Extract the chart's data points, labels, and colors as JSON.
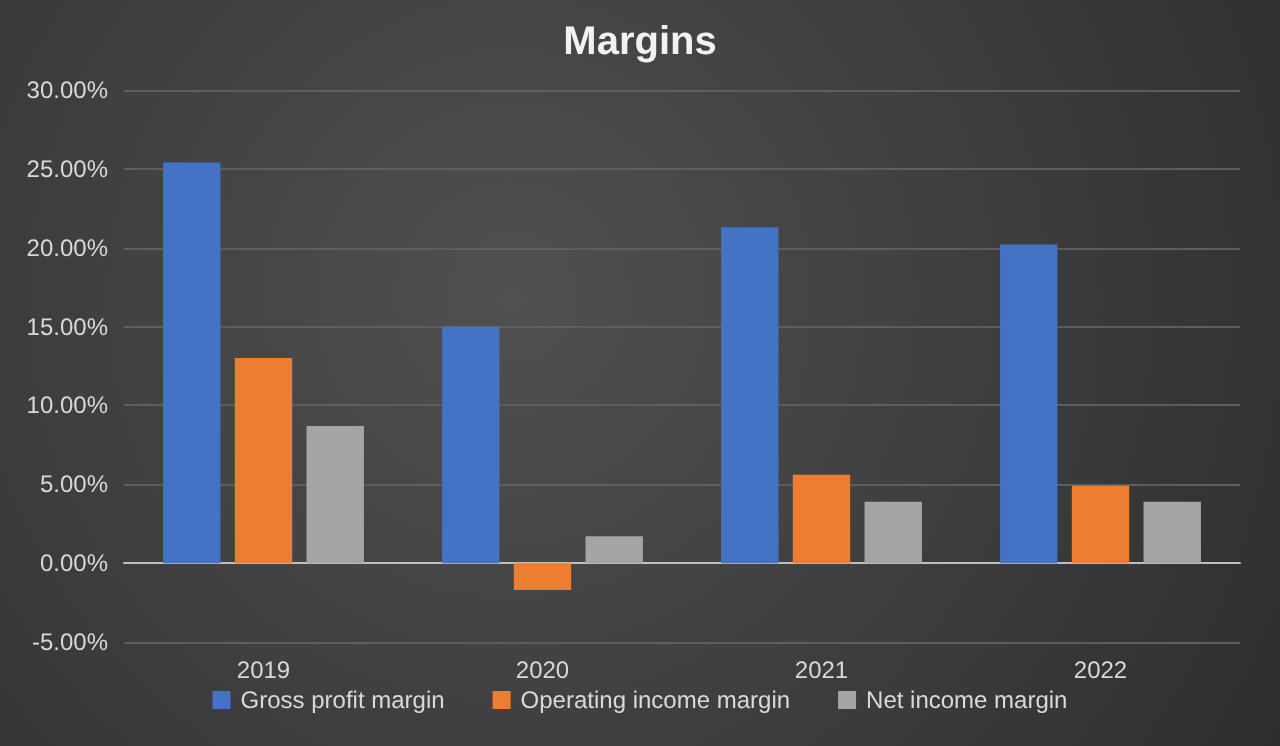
{
  "chart_data": {
    "type": "bar",
    "title": "Margins",
    "categories": [
      "2019",
      "2020",
      "2021",
      "2022"
    ],
    "series": [
      {
        "name": "Gross profit margin",
        "color": "#4472c4",
        "values": [
          25.4,
          15.0,
          21.3,
          20.2
        ]
      },
      {
        "name": "Operating income margin",
        "color": "#ed7d31",
        "values": [
          13.0,
          -1.7,
          5.6,
          4.9
        ]
      },
      {
        "name": "Net income margin",
        "color": "#a5a5a5",
        "values": [
          8.7,
          1.7,
          3.9,
          3.9
        ]
      }
    ],
    "ylim": [
      -5,
      30
    ],
    "yticks": [
      {
        "value": -5,
        "label": "-5.00%"
      },
      {
        "value": 0,
        "label": "0.00%"
      },
      {
        "value": 5,
        "label": "5.00%"
      },
      {
        "value": 10,
        "label": "10.00%"
      },
      {
        "value": 15,
        "label": "15.00%"
      },
      {
        "value": 20,
        "label": "20.00%"
      },
      {
        "value": 25,
        "label": "25.00%"
      },
      {
        "value": 30,
        "label": "30.00%"
      }
    ],
    "grid": "y",
    "legend": "bottom"
  }
}
